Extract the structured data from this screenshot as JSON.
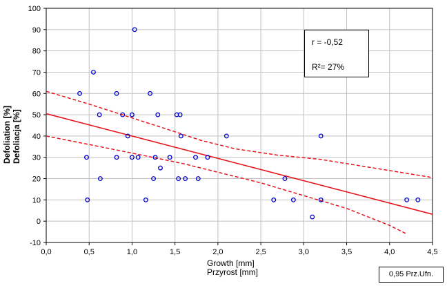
{
  "chart_data": {
    "type": "scatter",
    "xlabel": "Growth [mm]",
    "xlabel2": "Przyrost [mm]",
    "ylabel": "Defoliation [%]",
    "ylabel2": "Defoliacja [%]",
    "xlim": [
      0,
      4.5
    ],
    "ylim": [
      -10,
      100
    ],
    "x_ticks": [
      "0,0",
      "0,5",
      "1,0",
      "1,5",
      "2,0",
      "2,5",
      "3,0",
      "3,5",
      "4,0",
      "4,5"
    ],
    "y_ticks": [
      "-10",
      "0",
      "10",
      "20",
      "30",
      "40",
      "50",
      "60",
      "70",
      "80",
      "90",
      "100"
    ],
    "grid": true,
    "stats": {
      "r": "r = -0,52",
      "r2": "R²= 27%"
    },
    "legend": "0,95 Prz.Ufn.",
    "regression": {
      "intercept": 50.5,
      "slope": -10.5
    },
    "ci_upper": [
      [
        0,
        61
      ],
      [
        0.5,
        55
      ],
      [
        1.0,
        48.5
      ],
      [
        1.5,
        42
      ],
      [
        1.8,
        38
      ],
      [
        2.2,
        34
      ],
      [
        2.7,
        31
      ],
      [
        3.2,
        29
      ],
      [
        4.5,
        20.5
      ]
    ],
    "ci_lower": [
      [
        0,
        40
      ],
      [
        0.5,
        36
      ],
      [
        1.0,
        32
      ],
      [
        1.3,
        29.5
      ],
      [
        1.6,
        27
      ],
      [
        1.9,
        24
      ],
      [
        2.5,
        18
      ],
      [
        3.0,
        12
      ],
      [
        3.5,
        6
      ],
      [
        4.0,
        -2
      ],
      [
        4.2,
        -6
      ]
    ],
    "points": [
      {
        "x": 0.39,
        "y": 60
      },
      {
        "x": 0.47,
        "y": 30
      },
      {
        "x": 0.48,
        "y": 10
      },
      {
        "x": 0.55,
        "y": 70
      },
      {
        "x": 0.62,
        "y": 50
      },
      {
        "x": 0.63,
        "y": 20
      },
      {
        "x": 0.82,
        "y": 60
      },
      {
        "x": 0.82,
        "y": 30
      },
      {
        "x": 0.89,
        "y": 50
      },
      {
        "x": 0.95,
        "y": 40
      },
      {
        "x": 1.0,
        "y": 50
      },
      {
        "x": 1.0,
        "y": 30
      },
      {
        "x": 1.03,
        "y": 90
      },
      {
        "x": 1.07,
        "y": 30
      },
      {
        "x": 1.16,
        "y": 10
      },
      {
        "x": 1.21,
        "y": 60
      },
      {
        "x": 1.25,
        "y": 20
      },
      {
        "x": 1.27,
        "y": 30
      },
      {
        "x": 1.3,
        "y": 50
      },
      {
        "x": 1.33,
        "y": 25
      },
      {
        "x": 1.44,
        "y": 30
      },
      {
        "x": 1.52,
        "y": 50
      },
      {
        "x": 1.54,
        "y": 20
      },
      {
        "x": 1.56,
        "y": 50
      },
      {
        "x": 1.57,
        "y": 40
      },
      {
        "x": 1.62,
        "y": 20
      },
      {
        "x": 1.74,
        "y": 30
      },
      {
        "x": 1.77,
        "y": 20
      },
      {
        "x": 1.88,
        "y": 30
      },
      {
        "x": 2.1,
        "y": 40
      },
      {
        "x": 2.65,
        "y": 10
      },
      {
        "x": 2.78,
        "y": 20
      },
      {
        "x": 2.88,
        "y": 10
      },
      {
        "x": 3.1,
        "y": 2
      },
      {
        "x": 3.2,
        "y": 40
      },
      {
        "x": 3.2,
        "y": 10
      },
      {
        "x": 4.2,
        "y": 10
      },
      {
        "x": 4.33,
        "y": 10
      }
    ],
    "colors": {
      "points": "#0000cc",
      "line": "#e8141c",
      "grid": "#c0c0c0"
    }
  }
}
